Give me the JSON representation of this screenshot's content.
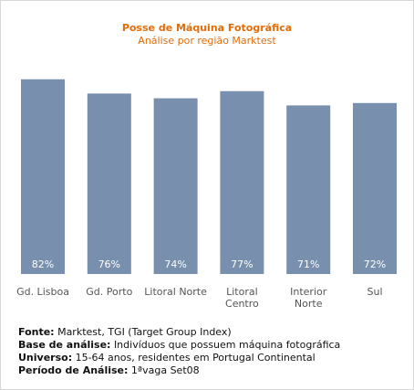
{
  "chart_data": {
    "type": "bar",
    "title": "Posse de Máquina Fotográfica",
    "subtitle": "Análise por região Marktest",
    "categories": [
      [
        "Gd. Lisboa"
      ],
      [
        "Gd. Porto"
      ],
      [
        "Litoral Norte"
      ],
      [
        "Litoral",
        "Centro"
      ],
      [
        "Interior",
        "Norte"
      ],
      [
        "Sul"
      ]
    ],
    "values": [
      82,
      76,
      74,
      77,
      71,
      72
    ],
    "value_labels": [
      "82%",
      "76%",
      "74%",
      "77%",
      "71%",
      "72%"
    ],
    "ylim": [
      0,
      100
    ],
    "bar_color": "#788fae",
    "grid": false,
    "legend": "none"
  },
  "notes": [
    {
      "key": "Fonte:",
      "value": "Marktest, TGI (Target Group Index)"
    },
    {
      "key": "Base de análise:",
      "value": "Indivíduos que possuem máquina fotográfica"
    },
    {
      "key": "Universo:",
      "value": "15-64 anos, residentes em Portugal Continental"
    },
    {
      "key": "Período de Análise:",
      "value": "1ªvaga Set08"
    }
  ]
}
